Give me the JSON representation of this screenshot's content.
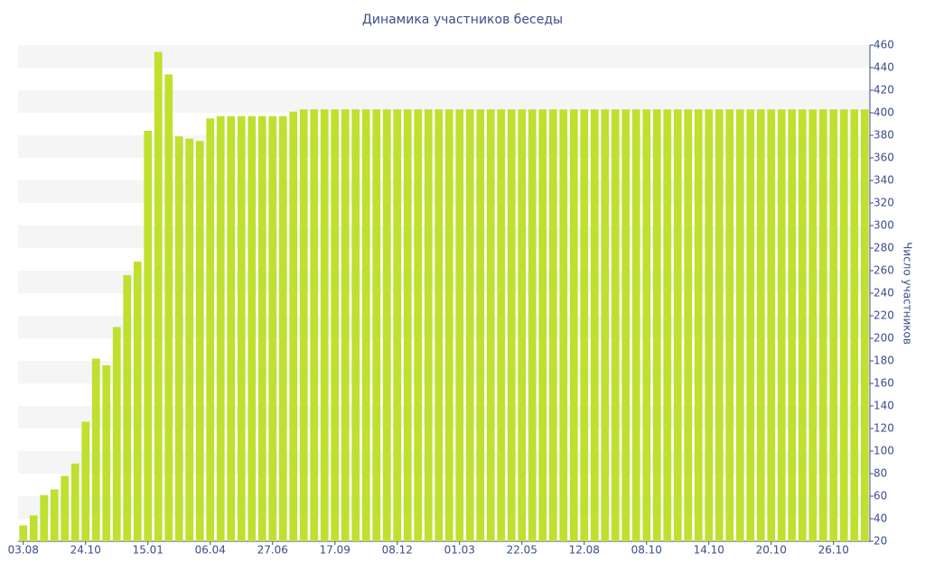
{
  "chart_data": {
    "type": "bar",
    "title": "Динамика участников беседы",
    "y_label": "Число участников",
    "categories": [
      "03.08",
      null,
      null,
      null,
      null,
      null,
      "24.10",
      null,
      null,
      null,
      null,
      null,
      "15.01",
      null,
      null,
      null,
      null,
      null,
      "06.04",
      null,
      null,
      null,
      null,
      null,
      "27.06",
      null,
      null,
      null,
      null,
      null,
      "17.09",
      null,
      null,
      null,
      null,
      null,
      "08.12",
      null,
      null,
      null,
      null,
      null,
      "01.03",
      null,
      null,
      null,
      null,
      null,
      "22.05",
      null,
      null,
      null,
      null,
      null,
      "12.08",
      null,
      null,
      null,
      null,
      null,
      "08.10",
      null,
      null,
      null,
      null,
      null,
      "14.10",
      null,
      null,
      null,
      null,
      null,
      "20.10",
      null,
      null,
      null,
      null,
      null,
      "26.10",
      null,
      null,
      null
    ],
    "values": [
      34,
      43,
      61,
      66,
      78,
      89,
      126,
      182,
      176,
      210,
      256,
      268,
      384,
      454,
      434,
      379,
      377,
      375,
      395,
      397,
      397,
      397,
      397,
      397,
      397,
      397,
      401,
      403,
      403,
      403,
      403,
      403,
      403,
      403,
      403,
      403,
      403,
      403,
      403,
      403,
      403,
      403,
      403,
      403,
      403,
      403,
      403,
      403,
      403,
      403,
      403,
      403,
      403,
      403,
      403,
      403,
      403,
      403,
      403,
      403,
      403,
      403,
      403,
      403,
      403,
      403,
      403,
      403,
      403,
      403,
      403,
      403,
      403,
      403,
      403,
      403,
      403,
      403,
      403,
      403,
      403,
      403
    ],
    "color": "#bfe02e",
    "ylim": [
      20,
      460
    ],
    "yticks": [
      20,
      40,
      60,
      80,
      100,
      120,
      140,
      160,
      180,
      200,
      220,
      240,
      260,
      280,
      300,
      320,
      340,
      360,
      380,
      400,
      420,
      440,
      460
    ],
    "grid": true
  }
}
